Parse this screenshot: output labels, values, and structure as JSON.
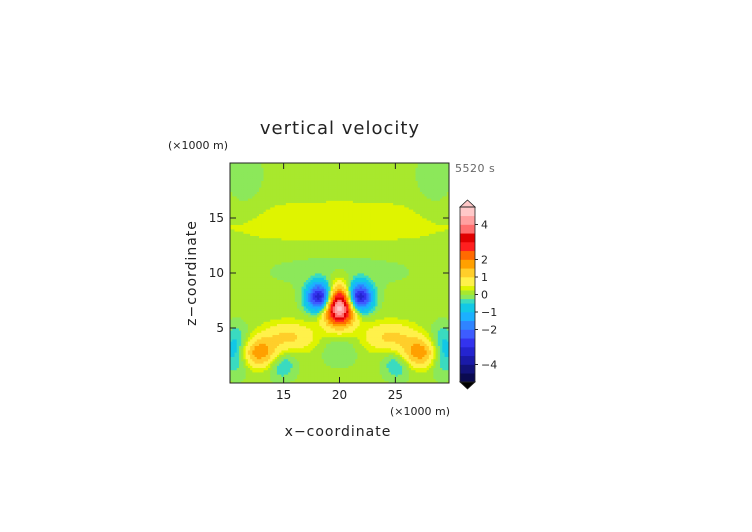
{
  "chart_data": {
    "type": "heatmap",
    "title": "vertical velocity",
    "time_label": "5520 s",
    "xlabel": "x−coordinate",
    "ylabel": "z−coordinate",
    "x_unit": "(×1000 m)",
    "y_unit": "(×1000 m)",
    "xlim": [
      10.2,
      29.8
    ],
    "ylim": [
      0,
      20
    ],
    "x_ticks": [
      {
        "value": 15,
        "label": "15"
      },
      {
        "value": 20,
        "label": "20"
      },
      {
        "value": 25,
        "label": "25"
      }
    ],
    "y_ticks": [
      {
        "value": 5,
        "label": "5"
      },
      {
        "value": 10,
        "label": "10"
      },
      {
        "value": 15,
        "label": "15"
      }
    ],
    "colorbar": {
      "range": [
        -5,
        5
      ],
      "levels": [
        -5,
        -4.5,
        -4,
        -3.5,
        -3,
        -2.5,
        -2,
        -1.5,
        -1,
        -0.5,
        -0.25,
        0,
        0.25,
        0.5,
        1,
        1.5,
        2,
        2.5,
        3,
        3.5,
        4,
        4.5,
        5
      ],
      "colors": [
        "#0a0a50",
        "#12127a",
        "#1a1aa8",
        "#2424cf",
        "#3333ee",
        "#3d5cff",
        "#2f84ff",
        "#1cb0ff",
        "#12c8e6",
        "#3adbc0",
        "#8ce85a",
        "#a8e82d",
        "#dff400",
        "#fff14a",
        "#ffce2a",
        "#ffa000",
        "#ff6a00",
        "#ff1f1f",
        "#e00000",
        "#ff6e6e",
        "#ffa0a0",
        "#ffc8c8"
      ],
      "tick_labels": [
        {
          "value": 4,
          "label": "4"
        },
        {
          "value": 2,
          "label": "2"
        },
        {
          "value": 1,
          "label": "1"
        },
        {
          "value": 0,
          "label": "0"
        },
        {
          "value": -1,
          "label": "−1"
        },
        {
          "value": -2,
          "label": "−2"
        },
        {
          "value": -4,
          "label": "−4"
        }
      ]
    },
    "background_level": 0.1,
    "features": [
      {
        "kind": "updraft_core",
        "x": 20.0,
        "z": 7.0,
        "peak": 5.0,
        "sx": 1.0,
        "sz": 1.2
      },
      {
        "kind": "downdraft",
        "x": 18.3,
        "z": 7.8,
        "peak": -4.0,
        "sx": 0.8,
        "sz": 0.9
      },
      {
        "kind": "downdraft",
        "x": 21.7,
        "z": 7.8,
        "peak": -4.0,
        "sx": 0.8,
        "sz": 0.9
      },
      {
        "kind": "updraft",
        "x": 12.8,
        "z": 2.8,
        "peak": 1.8,
        "sx": 1.2,
        "sz": 0.9
      },
      {
        "kind": "updraft",
        "x": 27.2,
        "z": 2.8,
        "peak": 1.8,
        "sx": 1.2,
        "sz": 0.9
      },
      {
        "kind": "updraft",
        "x": 15.5,
        "z": 4.2,
        "peak": 1.0,
        "sx": 1.6,
        "sz": 0.9
      },
      {
        "kind": "updraft",
        "x": 24.5,
        "z": 4.2,
        "peak": 1.0,
        "sx": 1.6,
        "sz": 0.9
      },
      {
        "kind": "downdraft",
        "x": 10.8,
        "z": 3.0,
        "peak": -1.0,
        "sx": 0.9,
        "sz": 1.4
      },
      {
        "kind": "downdraft",
        "x": 29.2,
        "z": 3.0,
        "peak": -1.0,
        "sx": 0.9,
        "sz": 1.4
      },
      {
        "kind": "downdraft",
        "x": 14.8,
        "z": 1.8,
        "peak": -0.7,
        "sx": 0.9,
        "sz": 1.0
      },
      {
        "kind": "downdraft",
        "x": 25.2,
        "z": 1.8,
        "peak": -0.7,
        "sx": 0.9,
        "sz": 1.0
      },
      {
        "kind": "downdraft",
        "x": 20.0,
        "z": 3.2,
        "peak": -0.35,
        "sx": 1.2,
        "sz": 1.2
      },
      {
        "kind": "updraft",
        "x": 20.0,
        "z": 14.5,
        "peak": 0.28,
        "sx": 10.0,
        "sz": 1.8
      },
      {
        "kind": "downdraft",
        "x": 20.0,
        "z": 10.5,
        "peak": -0.2,
        "sx": 6.0,
        "sz": 1.5
      },
      {
        "kind": "downdraft",
        "x": 11.5,
        "z": 18.5,
        "peak": -0.3,
        "sx": 1.2,
        "sz": 2.0
      },
      {
        "kind": "downdraft",
        "x": 28.5,
        "z": 18.5,
        "peak": -0.3,
        "sx": 1.2,
        "sz": 2.0
      }
    ]
  }
}
